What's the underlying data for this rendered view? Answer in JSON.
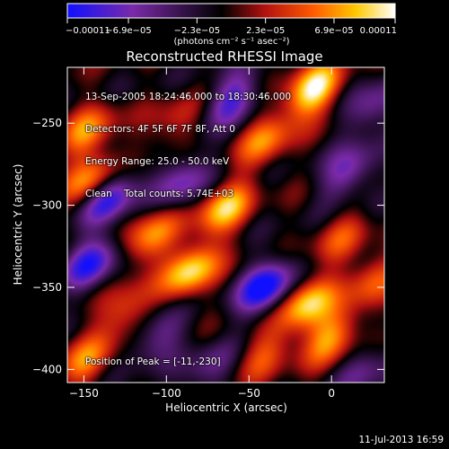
{
  "chart_data": {
    "type": "heatmap",
    "title": "Reconstructed RHESSI Image",
    "xlabel": "Heliocentric X (arcsec)",
    "ylabel": "Heliocentric Y (arcsec)",
    "xlim": [
      -160,
      32
    ],
    "ylim": [
      -408,
      -216
    ],
    "x_ticks": [
      -150,
      -100,
      -50,
      0
    ],
    "y_ticks": [
      -400,
      -350,
      -300,
      -250
    ],
    "x_tick_labels": [
      "−150",
      "−100",
      "−50",
      "0"
    ],
    "y_tick_labels": [
      "−400",
      "−350",
      "−300",
      "−250"
    ],
    "colorbar": {
      "min": -0.00011,
      "max": 0.00011,
      "tick_values": [
        -0.00011,
        -6.9e-05,
        -2.3e-05,
        2.3e-05,
        6.9e-05,
        0.00011
      ],
      "tick_labels": [
        "−0.00011",
        "−6.9e−05",
        "−2.3e−05",
        "2.3e−05",
        "6.9e−05",
        "0.00011"
      ],
      "units": "(photons cm⁻² s⁻¹ asec⁻²)",
      "colors": [
        "#1010ff",
        "#7a2aa8",
        "#000000",
        "#b01010",
        "#ff5a00",
        "#ffc800",
        "#ffffff"
      ]
    },
    "info_lines": [
      "13-Sep-2005 18:24:46.000 to 18:30:46.000",
      "Detectors: 4F 5F 6F 7F 8F, Att 0",
      "Energy Range: 25.0 - 50.0 keV",
      "Clean    Total counts: 5.74E+03"
    ],
    "peak_text": "Position of Peak = [-11,-230]",
    "peak": {
      "x": -11,
      "y": -230
    },
    "sources": [
      {
        "x": -11,
        "y": -230,
        "a": 1.0
      },
      {
        "x": -85,
        "y": -340,
        "a": 0.9
      },
      {
        "x": -65,
        "y": -302,
        "a": 0.8
      },
      {
        "x": -110,
        "y": -320,
        "a": 0.7
      },
      {
        "x": -145,
        "y": -285,
        "a": 0.75
      },
      {
        "x": -148,
        "y": -255,
        "a": 0.6
      },
      {
        "x": -40,
        "y": -260,
        "a": 0.6
      },
      {
        "x": -15,
        "y": -360,
        "a": 0.85
      },
      {
        "x": 0,
        "y": -380,
        "a": 0.7
      },
      {
        "x": 25,
        "y": -345,
        "a": 0.5
      },
      {
        "x": -125,
        "y": -365,
        "a": 0.5
      },
      {
        "x": -150,
        "y": -395,
        "a": 0.55
      },
      {
        "x": -40,
        "y": -390,
        "a": 0.45
      },
      {
        "x": 5,
        "y": -320,
        "a": 0.4
      },
      {
        "x": -95,
        "y": -250,
        "a": 0.35
      },
      {
        "x": -145,
        "y": -335,
        "a": -0.8
      },
      {
        "x": -135,
        "y": -295,
        "a": -0.9
      },
      {
        "x": -90,
        "y": -285,
        "a": -0.6
      },
      {
        "x": -40,
        "y": -350,
        "a": -1.0
      },
      {
        "x": -60,
        "y": -235,
        "a": -0.7
      },
      {
        "x": 10,
        "y": -280,
        "a": -0.6
      },
      {
        "x": -105,
        "y": -380,
        "a": -0.5
      },
      {
        "x": 20,
        "y": -400,
        "a": -0.4
      },
      {
        "x": -75,
        "y": -400,
        "a": -0.4
      },
      {
        "x": 25,
        "y": -240,
        "a": -0.5
      }
    ]
  },
  "footer": "11-Jul-2013 16:59"
}
